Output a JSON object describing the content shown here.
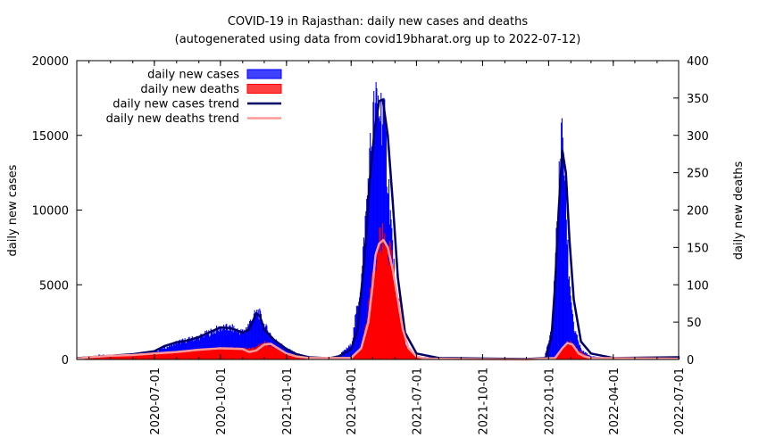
{
  "chart_data": {
    "type": "area",
    "title": "COVID-19 in Rajasthan: daily new cases and deaths",
    "subtitle": "(autogenerated using data from covid19bharat.org up to 2022-07-12)",
    "ylabel_left": "daily new cases",
    "ylabel_right": "daily new deaths",
    "ylim_left": [
      0,
      20000
    ],
    "ylim_right": [
      0,
      400
    ],
    "xlim": [
      "2020-03-15",
      "2022-07-01"
    ],
    "x_ticks": [
      "2020-07-01",
      "2020-10-01",
      "2021-01-01",
      "2021-04-01",
      "2021-07-01",
      "2021-10-01",
      "2022-01-01",
      "2022-04-01",
      "2022-07-01"
    ],
    "y_ticks_left": [
      0,
      5000,
      10000,
      15000,
      20000
    ],
    "y_ticks_right": [
      0,
      50,
      100,
      150,
      200,
      250,
      300,
      350,
      400
    ],
    "legend_position": "top-left",
    "colors": {
      "cases": "#0000ff",
      "deaths": "#ff0000",
      "cases_trend": "#000066",
      "deaths_trend": "#ff9999"
    },
    "series": [
      {
        "name": "daily new cases",
        "axis": "left",
        "kind": "bars",
        "x": [
          "2020-03-15",
          "2020-04-01",
          "2020-04-15",
          "2020-05-01",
          "2020-05-15",
          "2020-06-01",
          "2020-06-15",
          "2020-07-01",
          "2020-07-15",
          "2020-08-01",
          "2020-08-15",
          "2020-09-01",
          "2020-09-15",
          "2020-10-01",
          "2020-10-15",
          "2020-11-01",
          "2020-11-15",
          "2020-11-22",
          "2020-12-01",
          "2020-12-15",
          "2021-01-01",
          "2021-01-15",
          "2021-02-01",
          "2021-02-15",
          "2021-03-01",
          "2021-03-15",
          "2021-04-01",
          "2021-04-15",
          "2021-04-25",
          "2021-05-01",
          "2021-05-07",
          "2021-05-15",
          "2021-05-22",
          "2021-06-01",
          "2021-06-15",
          "2021-07-01",
          "2021-08-01",
          "2021-10-01",
          "2021-12-01",
          "2021-12-25",
          "2022-01-05",
          "2022-01-12",
          "2022-01-17",
          "2022-01-20",
          "2022-01-23",
          "2022-01-28",
          "2022-02-05",
          "2022-02-15",
          "2022-03-01",
          "2022-04-01",
          "2022-05-01",
          "2022-06-01",
          "2022-07-01"
        ],
        "values": [
          50,
          150,
          300,
          250,
          300,
          350,
          400,
          550,
          800,
          1150,
          1300,
          1500,
          1800,
          2100,
          2100,
          1800,
          2800,
          3200,
          2200,
          1300,
          700,
          400,
          150,
          100,
          100,
          300,
          1000,
          5500,
          12500,
          16000,
          17000,
          16500,
          12000,
          4500,
          1000,
          200,
          50,
          20,
          20,
          50,
          2000,
          9000,
          13500,
          15500,
          12000,
          6000,
          2000,
          600,
          200,
          100,
          50,
          50,
          200
        ]
      },
      {
        "name": "daily new deaths",
        "axis": "right",
        "kind": "bars",
        "x": [
          "2020-03-15",
          "2020-04-01",
          "2020-05-01",
          "2020-06-01",
          "2020-07-01",
          "2020-08-01",
          "2020-09-01",
          "2020-10-01",
          "2020-11-01",
          "2020-11-15",
          "2020-12-01",
          "2020-12-15",
          "2021-01-01",
          "2021-02-01",
          "2021-04-01",
          "2021-04-15",
          "2021-05-01",
          "2021-05-10",
          "2021-05-18",
          "2021-05-25",
          "2021-06-01",
          "2021-06-15",
          "2021-07-01",
          "2021-12-01",
          "2022-01-10",
          "2022-01-25",
          "2022-02-01",
          "2022-02-10",
          "2022-03-01",
          "2022-07-01"
        ],
        "values": [
          1,
          4,
          5,
          6,
          8,
          10,
          13,
          15,
          15,
          15,
          22,
          16,
          8,
          2,
          2,
          15,
          110,
          158,
          160,
          140,
          100,
          20,
          3,
          0,
          2,
          22,
          22,
          12,
          2,
          0
        ]
      },
      {
        "name": "daily new cases trend",
        "axis": "left",
        "kind": "line",
        "x": [
          "2020-03-15",
          "2020-04-01",
          "2020-05-01",
          "2020-06-01",
          "2020-07-01",
          "2020-07-15",
          "2020-08-01",
          "2020-08-15",
          "2020-09-01",
          "2020-09-15",
          "2020-10-01",
          "2020-10-15",
          "2020-11-01",
          "2020-11-10",
          "2020-11-20",
          "2020-11-25",
          "2020-12-01",
          "2020-12-15",
          "2021-01-01",
          "2021-01-15",
          "2021-02-01",
          "2021-03-01",
          "2021-03-15",
          "2021-04-01",
          "2021-04-10",
          "2021-04-20",
          "2021-04-27",
          "2021-05-04",
          "2021-05-10",
          "2021-05-15",
          "2021-05-22",
          "2021-05-29",
          "2021-06-05",
          "2021-06-15",
          "2021-07-01",
          "2021-08-01",
          "2021-12-01",
          "2021-12-28",
          "2022-01-05",
          "2022-01-10",
          "2022-01-15",
          "2022-01-20",
          "2022-01-25",
          "2022-01-30",
          "2022-02-05",
          "2022-02-15",
          "2022-03-01",
          "2022-04-01",
          "2022-07-01"
        ],
        "values": [
          80,
          150,
          250,
          350,
          550,
          900,
          1150,
          1250,
          1500,
          1800,
          2150,
          2100,
          1800,
          2000,
          3100,
          2900,
          2000,
          1300,
          700,
          350,
          150,
          80,
          200,
          700,
          2000,
          7000,
          12000,
          15500,
          17300,
          17400,
          15000,
          10500,
          5500,
          1800,
          400,
          100,
          30,
          100,
          1500,
          5000,
          10000,
          14000,
          12500,
          8000,
          4000,
          1200,
          400,
          100,
          150
        ]
      },
      {
        "name": "daily new deaths trend",
        "axis": "right",
        "kind": "line",
        "x": [
          "2020-03-15",
          "2020-04-01",
          "2020-05-01",
          "2020-06-01",
          "2020-07-01",
          "2020-08-01",
          "2020-09-01",
          "2020-10-01",
          "2020-11-01",
          "2020-11-10",
          "2020-11-20",
          "2020-12-01",
          "2020-12-10",
          "2020-12-20",
          "2021-01-01",
          "2021-01-15",
          "2021-02-01",
          "2021-04-01",
          "2021-04-15",
          "2021-04-25",
          "2021-05-01",
          "2021-05-05",
          "2021-05-10",
          "2021-05-16",
          "2021-05-22",
          "2021-05-29",
          "2021-06-05",
          "2021-06-12",
          "2021-06-20",
          "2021-07-01",
          "2021-07-15",
          "2021-12-01",
          "2022-01-10",
          "2022-01-20",
          "2022-01-27",
          "2022-02-03",
          "2022-02-12",
          "2022-02-20",
          "2022-03-01",
          "2022-07-01"
        ],
        "values": [
          1,
          3,
          5,
          6,
          8,
          10,
          13,
          15,
          14,
          10,
          12,
          20,
          21,
          15,
          8,
          4,
          2,
          2,
          15,
          50,
          100,
          140,
          155,
          160,
          150,
          120,
          80,
          40,
          15,
          4,
          1,
          0,
          2,
          15,
          22,
          20,
          8,
          4,
          2,
          1
        ]
      }
    ]
  }
}
